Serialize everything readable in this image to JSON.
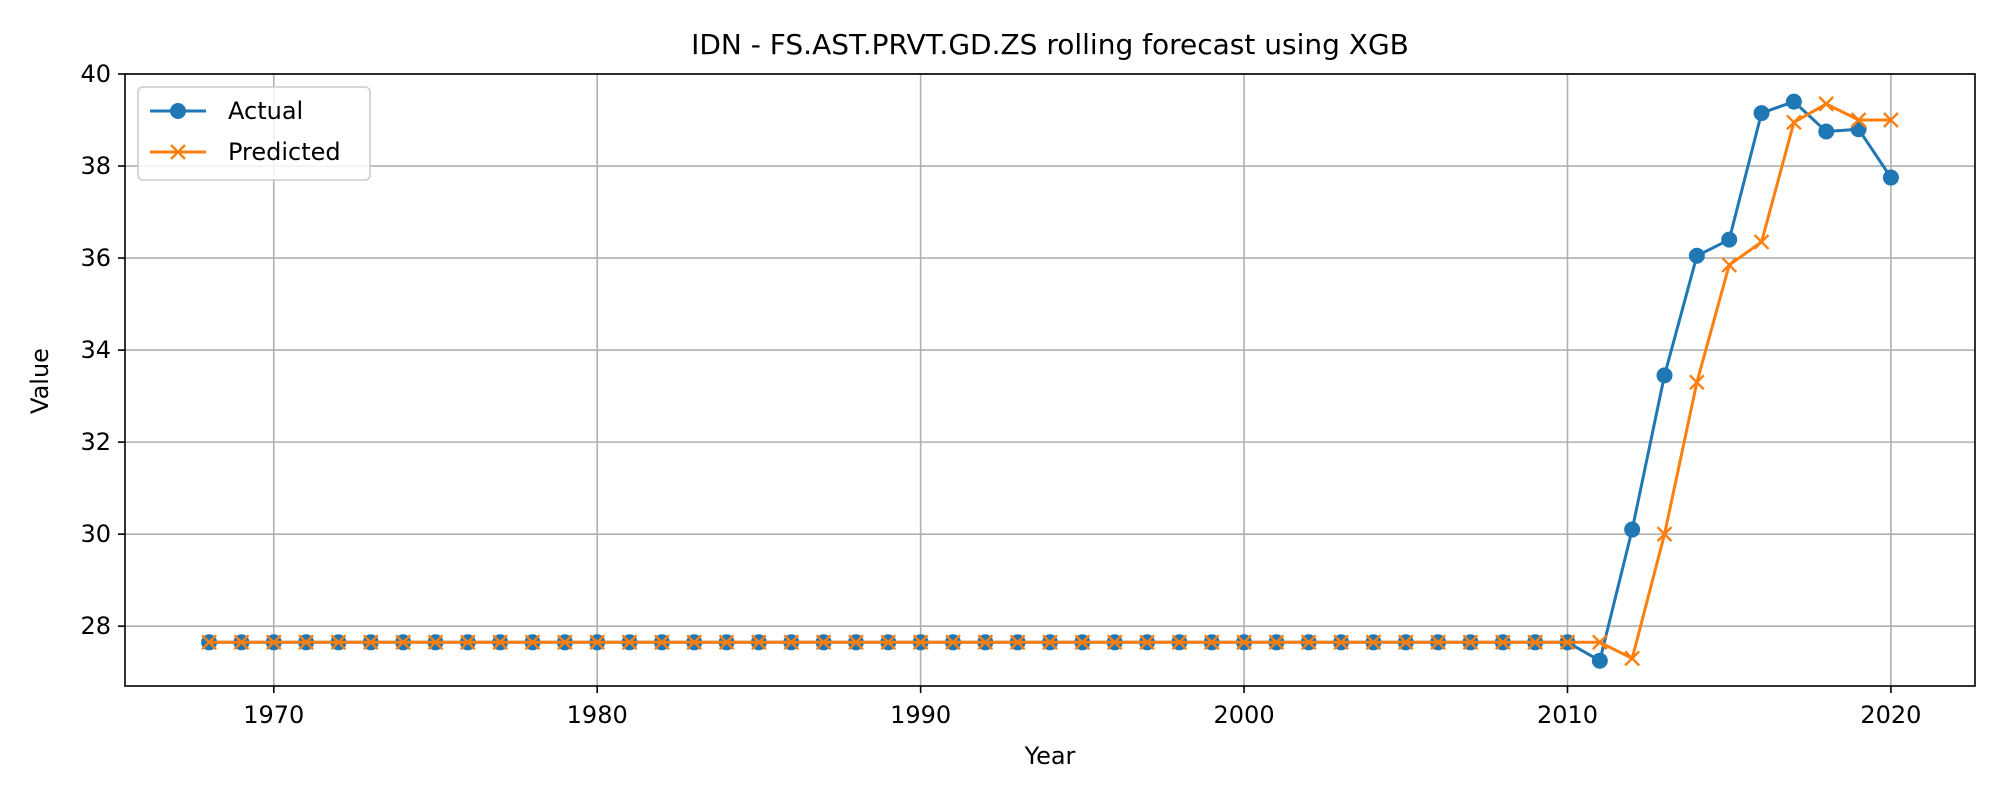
{
  "chart_data": {
    "type": "line",
    "title": "IDN - FS.AST.PRVT.GD.ZS rolling forecast using XGB",
    "xlabel": "Year",
    "ylabel": "Value",
    "xlim": [
      1965.4,
      2022.6
    ],
    "ylim": [
      26.7,
      40.0
    ],
    "xticks": [
      1970,
      1980,
      1990,
      2000,
      2010,
      2020
    ],
    "yticks": [
      28,
      30,
      32,
      34,
      36,
      38,
      40
    ],
    "grid": true,
    "legend_position": "top-left",
    "x": [
      1968,
      1969,
      1970,
      1971,
      1972,
      1973,
      1974,
      1975,
      1976,
      1977,
      1978,
      1979,
      1980,
      1981,
      1982,
      1983,
      1984,
      1985,
      1986,
      1987,
      1988,
      1989,
      1990,
      1991,
      1992,
      1993,
      1994,
      1995,
      1996,
      1997,
      1998,
      1999,
      2000,
      2001,
      2002,
      2003,
      2004,
      2005,
      2006,
      2007,
      2008,
      2009,
      2010,
      2011,
      2012,
      2013,
      2014,
      2015,
      2016,
      2017,
      2018,
      2019,
      2020
    ],
    "series": [
      {
        "name": "Actual",
        "color": "#1f77b4",
        "marker": "circle",
        "values": [
          27.65,
          27.65,
          27.65,
          27.65,
          27.65,
          27.65,
          27.65,
          27.65,
          27.65,
          27.65,
          27.65,
          27.65,
          27.65,
          27.65,
          27.65,
          27.65,
          27.65,
          27.65,
          27.65,
          27.65,
          27.65,
          27.65,
          27.65,
          27.65,
          27.65,
          27.65,
          27.65,
          27.65,
          27.65,
          27.65,
          27.65,
          27.65,
          27.65,
          27.65,
          27.65,
          27.65,
          27.65,
          27.65,
          27.65,
          27.65,
          27.65,
          27.65,
          27.65,
          27.25,
          30.1,
          33.45,
          36.05,
          36.4,
          39.15,
          39.4,
          38.75,
          38.8,
          37.75
        ]
      },
      {
        "name": "Predicted",
        "color": "#ff7f0e",
        "marker": "x",
        "values": [
          27.65,
          27.65,
          27.65,
          27.65,
          27.65,
          27.65,
          27.65,
          27.65,
          27.65,
          27.65,
          27.65,
          27.65,
          27.65,
          27.65,
          27.65,
          27.65,
          27.65,
          27.65,
          27.65,
          27.65,
          27.65,
          27.65,
          27.65,
          27.65,
          27.65,
          27.65,
          27.65,
          27.65,
          27.65,
          27.65,
          27.65,
          27.65,
          27.65,
          27.65,
          27.65,
          27.65,
          27.65,
          27.65,
          27.65,
          27.65,
          27.65,
          27.65,
          27.65,
          27.65,
          27.3,
          30.0,
          33.3,
          35.85,
          36.35,
          38.95,
          39.35,
          39.0,
          39.0
        ]
      }
    ]
  }
}
